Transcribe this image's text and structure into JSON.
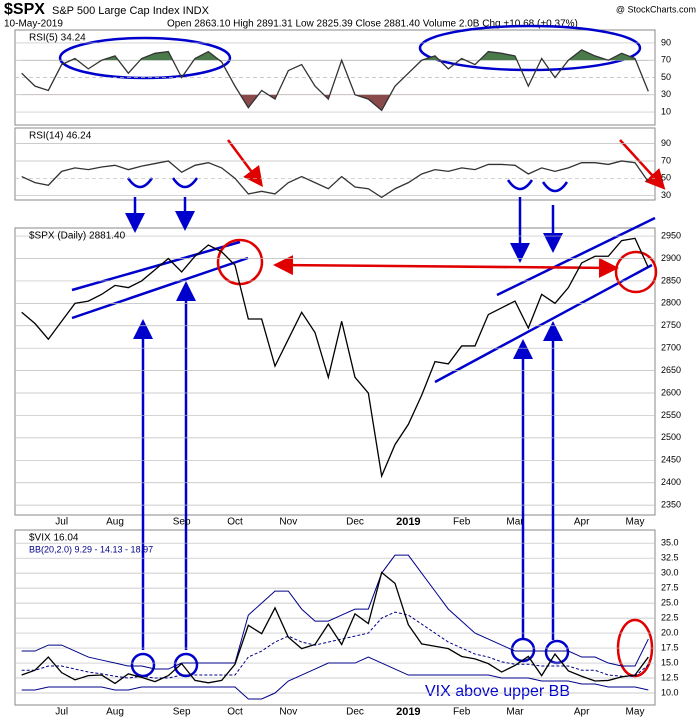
{
  "header": {
    "symbol": "$SPX",
    "name": "S&P 500 Large Cap Index INDX",
    "date": "10-May-2019",
    "quote": "Open 2863.10 High 2891.31 Low 2825.39 Close 2881.40 Volume 2.0B Chg +10.68 (+0.37%)",
    "source": "@ StockCharts.com"
  },
  "chart_data": [
    {
      "type": "line",
      "fill_above": 70,
      "fill_below": 30,
      "fill_above_color": "#4a7a4a",
      "fill_below_color": "#8a4a4a",
      "series": [
        {
          "name": "RSI(5) 34.24",
          "color": "#333333",
          "values": [
            55,
            40,
            35,
            65,
            72,
            60,
            70,
            75,
            55,
            72,
            78,
            80,
            50,
            72,
            80,
            68,
            40,
            15,
            35,
            25,
            58,
            65,
            40,
            25,
            70,
            30,
            25,
            12,
            40,
            55,
            70,
            75,
            60,
            72,
            65,
            80,
            78,
            75,
            40,
            72,
            50,
            70,
            82,
            75,
            70,
            78,
            72,
            34
          ]
        }
      ],
      "ylim": [
        -5,
        105
      ],
      "yticks": [
        10,
        30,
        50,
        70,
        90
      ]
    },
    {
      "type": "line",
      "series": [
        {
          "name": "RSI(14) 46.24",
          "color": "#333333",
          "values": [
            52,
            45,
            42,
            58,
            62,
            60,
            63,
            65,
            60,
            64,
            67,
            70,
            57,
            65,
            68,
            62,
            50,
            32,
            35,
            32,
            45,
            52,
            45,
            38,
            52,
            40,
            38,
            28,
            38,
            45,
            55,
            60,
            58,
            62,
            60,
            66,
            66,
            65,
            55,
            62,
            58,
            62,
            68,
            68,
            66,
            70,
            68,
            46
          ]
        }
      ],
      "ylim": [
        25,
        108
      ],
      "yticks": [
        30,
        50,
        70,
        90
      ]
    },
    {
      "type": "line",
      "categories": [
        null,
        null,
        null,
        "Jul",
        null,
        null,
        null,
        "Aug",
        null,
        null,
        null,
        null,
        "Sep",
        null,
        null,
        null,
        "Oct",
        null,
        null,
        null,
        "Nov",
        null,
        null,
        null,
        null,
        "Dec",
        null,
        null,
        null,
        "2019",
        null,
        null,
        null,
        "Feb",
        null,
        null,
        null,
        "Mar",
        null,
        null,
        null,
        null,
        "Apr",
        null,
        null,
        null,
        "May",
        null
      ],
      "series": [
        {
          "name": "$SPX (Daily) 2881.40",
          "color": "#000000",
          "values": [
            2780,
            2755,
            2720,
            2760,
            2800,
            2805,
            2820,
            2840,
            2835,
            2850,
            2875,
            2900,
            2870,
            2905,
            2930,
            2915,
            2885,
            2765,
            2765,
            2660,
            2720,
            2780,
            2735,
            2635,
            2760,
            2635,
            2600,
            2415,
            2485,
            2530,
            2595,
            2670,
            2665,
            2705,
            2705,
            2775,
            2790,
            2805,
            2745,
            2820,
            2800,
            2835,
            2890,
            2905,
            2905,
            2940,
            2945,
            2880
          ]
        }
      ],
      "ylim": [
        2328,
        2968
      ],
      "yticks": [
        2350,
        2400,
        2450,
        2500,
        2550,
        2600,
        2650,
        2700,
        2750,
        2800,
        2850,
        2900,
        2950
      ]
    },
    {
      "type": "line",
      "categories": [
        null,
        null,
        null,
        "Jul",
        null,
        null,
        null,
        "Aug",
        null,
        null,
        null,
        null,
        "Sep",
        null,
        null,
        null,
        "Oct",
        null,
        null,
        null,
        "Nov",
        null,
        null,
        null,
        null,
        "Dec",
        null,
        null,
        null,
        "2019",
        null,
        null,
        null,
        "Feb",
        null,
        null,
        null,
        "Mar",
        null,
        null,
        null,
        null,
        "Apr",
        null,
        null,
        null,
        "May",
        null
      ],
      "series": [
        {
          "name": "$VIX 16.04",
          "color": "#000000",
          "values": [
            13,
            13.8,
            16,
            13.4,
            12.2,
            12.9,
            13,
            11.6,
            13.2,
            12.6,
            11.9,
            12.9,
            14.9,
            12.1,
            11.7,
            12.1,
            14.8,
            21.3,
            19.9,
            24.2,
            19.3,
            17.4,
            18.1,
            21.5,
            18.1,
            23.2,
            21.6,
            30.1,
            28.3,
            21.4,
            18.2,
            17.8,
            17.4,
            16.1,
            15.7,
            14.9,
            13.5,
            14.6,
            16.1,
            12.9,
            16.5,
            13.7,
            12.8,
            12,
            12.1,
            12.7,
            13,
            16
          ]
        }
      ],
      "bands": {
        "name": "BB(20,2.0) 9.29 - 14.13 - 18.97",
        "color": "#00008b",
        "upper": [
          17,
          17,
          18,
          18,
          17,
          16,
          15.5,
          15,
          14.5,
          14.5,
          14,
          14,
          15,
          15,
          15,
          15,
          15,
          23,
          25,
          27,
          27,
          24,
          22,
          22,
          23,
          24,
          24,
          30,
          33,
          33,
          30,
          27,
          24,
          22,
          20,
          19,
          18,
          17,
          17,
          17,
          17,
          17,
          16,
          16,
          15,
          14.5,
          14.5,
          19
        ],
        "middle": [
          13.8,
          13.8,
          14.5,
          14.5,
          14,
          13.5,
          13.2,
          12.8,
          12.5,
          12.8,
          12.5,
          12.5,
          13,
          13,
          13,
          13,
          13,
          16,
          17,
          18.5,
          19.5,
          18.5,
          18,
          18.5,
          19,
          19.5,
          20,
          22.5,
          23.5,
          23,
          21.5,
          20,
          18.5,
          17.5,
          16.5,
          16,
          15.2,
          14.8,
          14.8,
          14.5,
          14.5,
          14.5,
          13.8,
          13.8,
          13,
          12.8,
          12.8,
          14.7
        ],
        "lower": [
          10.5,
          10.5,
          11,
          11,
          11,
          11,
          11,
          10.5,
          10.5,
          11,
          11,
          11,
          11,
          11,
          11,
          11,
          11,
          9,
          9,
          10,
          12,
          13,
          14,
          15,
          15,
          15,
          16,
          15,
          14,
          13,
          13,
          13,
          13,
          13,
          13,
          13,
          12.5,
          12.5,
          12.5,
          12,
          12,
          12,
          11.5,
          11.5,
          11,
          11,
          11,
          10.5
        ]
      },
      "annotation": "VIX above upper BB",
      "ylim": [
        8,
        37.2
      ],
      "yticks": [
        {
          "value": 10,
          "label": "10.0"
        },
        {
          "value": 12.5,
          "label": "12.5"
        },
        {
          "value": 15,
          "label": "15.0"
        },
        {
          "value": 17.5,
          "label": "17.5"
        },
        {
          "value": 20,
          "label": "20.0"
        },
        {
          "value": 22.5,
          "label": "22.5"
        },
        {
          "value": 25,
          "label": "25.0"
        },
        {
          "value": 27.5,
          "label": "27.5"
        },
        {
          "value": 30,
          "label": "30.0"
        },
        {
          "value": 32.5,
          "label": "32.5"
        },
        {
          "value": 35,
          "label": "35.0"
        }
      ]
    }
  ]
}
